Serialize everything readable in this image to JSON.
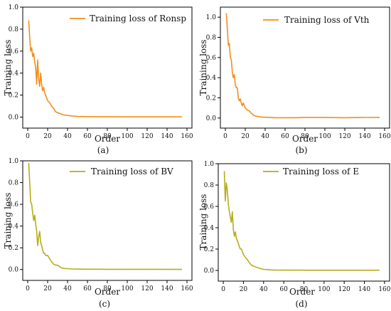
{
  "chart_data": [
    {
      "type": "line",
      "panel_label": "(a)",
      "xlabel": "Order",
      "ylabel": "Training loss",
      "xlim": [
        -5,
        165
      ],
      "ylim": [
        -0.1,
        1.0
      ],
      "xticks": [
        0,
        20,
        40,
        60,
        80,
        100,
        120,
        140,
        160
      ],
      "yticks": [
        0.0,
        0.2,
        0.4,
        0.6,
        0.8,
        1.0
      ],
      "ytick_labels": [
        "0.0",
        "0.2",
        "0.4",
        "0.6",
        "0.8",
        "1.0"
      ],
      "legend_position": "top-right",
      "series": [
        {
          "name": "Training loss of Ronsp",
          "color": "#f28e1c",
          "x": [
            1,
            2,
            3,
            4,
            5,
            6,
            7,
            8,
            9,
            10,
            11,
            12,
            13,
            14,
            15,
            16,
            17,
            18,
            20,
            22,
            24,
            26,
            28,
            30,
            33,
            36,
            40,
            45,
            50,
            60,
            70,
            80,
            100,
            120,
            140,
            155
          ],
          "y": [
            0.88,
            0.72,
            0.6,
            0.63,
            0.55,
            0.58,
            0.5,
            0.45,
            0.3,
            0.52,
            0.35,
            0.28,
            0.4,
            0.3,
            0.24,
            0.27,
            0.22,
            0.2,
            0.15,
            0.13,
            0.1,
            0.08,
            0.05,
            0.04,
            0.03,
            0.02,
            0.015,
            0.01,
            0.006,
            0.004,
            0.003,
            0.003,
            0.002,
            0.002,
            0.002,
            0.002
          ]
        }
      ]
    },
    {
      "type": "line",
      "panel_label": "(b)",
      "xlabel": "Order",
      "ylabel": "Training loss",
      "xlim": [
        -5,
        165
      ],
      "ylim": [
        -0.1,
        1.1
      ],
      "xticks": [
        0,
        20,
        40,
        60,
        80,
        100,
        120,
        140,
        160
      ],
      "yticks": [
        0.0,
        0.2,
        0.4,
        0.6,
        0.8,
        1.0
      ],
      "ytick_labels": [
        "0.0",
        "0.2",
        "0.4",
        "0.6",
        "0.8",
        "1.0"
      ],
      "legend_position": "top-right",
      "series": [
        {
          "name": "Training loss of Vth",
          "color": "#f28e1c",
          "x": [
            1,
            2,
            3,
            4,
            5,
            6,
            7,
            8,
            9,
            10,
            11,
            12,
            13,
            14,
            15,
            16,
            17,
            18,
            20,
            22,
            24,
            26,
            28,
            30,
            33,
            36,
            40,
            45,
            50,
            60,
            70,
            80,
            100,
            120,
            140,
            155
          ],
          "y": [
            1.04,
            0.88,
            0.72,
            0.74,
            0.6,
            0.58,
            0.45,
            0.4,
            0.43,
            0.33,
            0.3,
            0.3,
            0.2,
            0.17,
            0.19,
            0.15,
            0.12,
            0.15,
            0.1,
            0.08,
            0.07,
            0.05,
            0.03,
            0.02,
            0.015,
            0.01,
            0.008,
            0.005,
            0.003,
            0.003,
            0.003,
            0.005,
            0.005,
            0.003,
            0.006,
            0.005
          ]
        }
      ]
    },
    {
      "type": "line",
      "panel_label": "(c)",
      "xlabel": "Order",
      "ylabel": "Training loss",
      "xlim": [
        -5,
        165
      ],
      "ylim": [
        -0.1,
        1.0
      ],
      "xticks": [
        0,
        20,
        40,
        60,
        80,
        100,
        120,
        140,
        160
      ],
      "yticks": [
        0.0,
        0.2,
        0.4,
        0.6,
        0.8,
        1.0
      ],
      "ytick_labels": [
        "0.0",
        "0.2",
        "0.4",
        "0.6",
        "0.8",
        "1.0"
      ],
      "legend_position": "top-right",
      "series": [
        {
          "name": "Training loss of BV",
          "color": "#b5ad1a",
          "x": [
            1,
            2,
            3,
            4,
            5,
            6,
            7,
            8,
            9,
            10,
            11,
            12,
            13,
            14,
            15,
            16,
            17,
            18,
            20,
            22,
            24,
            26,
            28,
            30,
            33,
            36,
            40,
            45,
            50,
            60,
            70,
            80,
            100,
            120,
            140,
            155
          ],
          "y": [
            0.98,
            0.8,
            0.62,
            0.6,
            0.52,
            0.45,
            0.5,
            0.42,
            0.35,
            0.22,
            0.3,
            0.35,
            0.25,
            0.22,
            0.18,
            0.15,
            0.15,
            0.13,
            0.13,
            0.1,
            0.07,
            0.05,
            0.04,
            0.04,
            0.02,
            0.01,
            0.008,
            0.005,
            0.004,
            0.003,
            0.003,
            0.002,
            0.002,
            0.002,
            0.002,
            0.001
          ]
        }
      ]
    },
    {
      "type": "line",
      "panel_label": "(d)",
      "xlabel": "Order",
      "ylabel": "Training loss",
      "xlim": [
        -5,
        165
      ],
      "ylim": [
        -0.1,
        1.0
      ],
      "xticks": [
        0,
        20,
        40,
        60,
        80,
        100,
        120,
        140,
        160
      ],
      "yticks": [
        0.0,
        0.2,
        0.4,
        0.6,
        0.8,
        1.0
      ],
      "ytick_labels": [
        "0.0",
        "0.2",
        "0.4",
        "0.6",
        "0.8",
        "1.0"
      ],
      "legend_position": "top-right",
      "series": [
        {
          "name": "Training loss of E",
          "color": "#b5ad1a",
          "x": [
            1,
            2,
            3,
            4,
            5,
            6,
            7,
            8,
            9,
            10,
            11,
            12,
            13,
            14,
            15,
            16,
            17,
            18,
            20,
            22,
            24,
            26,
            28,
            30,
            33,
            36,
            40,
            45,
            50,
            60,
            70,
            80,
            100,
            120,
            140,
            155
          ],
          "y": [
            0.93,
            0.65,
            0.82,
            0.75,
            0.62,
            0.55,
            0.5,
            0.45,
            0.55,
            0.38,
            0.32,
            0.36,
            0.3,
            0.28,
            0.25,
            0.22,
            0.2,
            0.2,
            0.15,
            0.12,
            0.1,
            0.07,
            0.05,
            0.04,
            0.03,
            0.02,
            0.01,
            0.007,
            0.004,
            0.003,
            0.003,
            0.002,
            0.002,
            0.002,
            0.002,
            0.002
          ]
        }
      ]
    }
  ]
}
